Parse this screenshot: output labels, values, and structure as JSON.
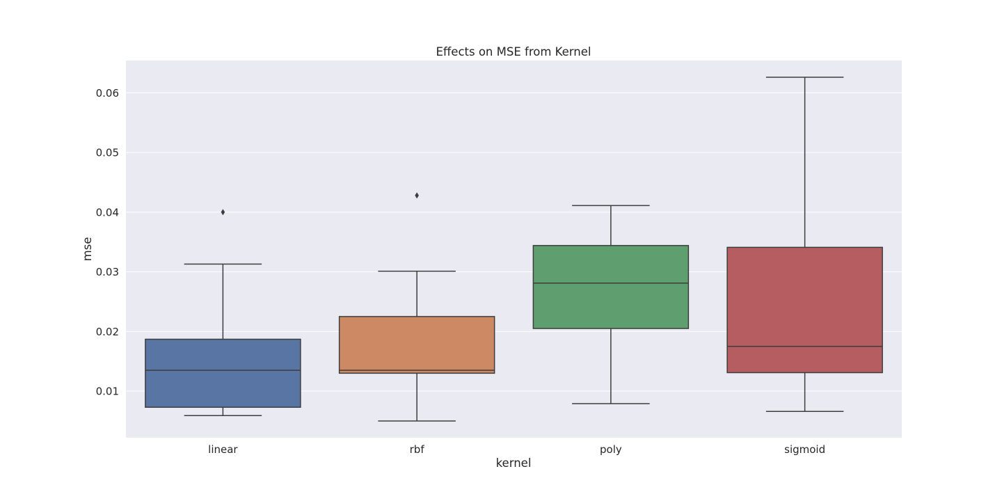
{
  "chart_data": {
    "type": "box",
    "title": "Effects on MSE from Kernel",
    "xlabel": "kernel",
    "ylabel": "mse",
    "ylim": [
      0.0022,
      0.0654
    ],
    "yticks": [
      0.01,
      0.02,
      0.03,
      0.04,
      0.05,
      0.06
    ],
    "ytick_labels": [
      "0.01",
      "0.02",
      "0.03",
      "0.04",
      "0.05",
      "0.06"
    ],
    "grid": true,
    "categories": [
      "linear",
      "rbf",
      "poly",
      "sigmoid"
    ],
    "boxes": [
      {
        "category": "linear",
        "whisker_low": 0.0059,
        "q1": 0.0073,
        "median": 0.0135,
        "q3": 0.0187,
        "whisker_high": 0.0313,
        "outliers": [
          0.04
        ],
        "color": "#5875a4"
      },
      {
        "category": "rbf",
        "whisker_low": 0.005,
        "q1": 0.013,
        "median": 0.0135,
        "q3": 0.0225,
        "whisker_high": 0.0301,
        "outliers": [
          0.0428
        ],
        "color": "#cc8963"
      },
      {
        "category": "poly",
        "whisker_low": 0.0079,
        "q1": 0.0205,
        "median": 0.0281,
        "q3": 0.0344,
        "whisker_high": 0.0411,
        "outliers": [],
        "color": "#5f9e6e"
      },
      {
        "category": "sigmoid",
        "whisker_low": 0.0066,
        "q1": 0.0131,
        "median": 0.0175,
        "q3": 0.0341,
        "whisker_high": 0.0626,
        "outliers": [],
        "color": "#b55d60"
      }
    ]
  },
  "colors": {
    "plot_background": "#eaeaf2",
    "grid": "#ffffff",
    "box_edge": "#3d3d3d",
    "text": "#262626"
  }
}
